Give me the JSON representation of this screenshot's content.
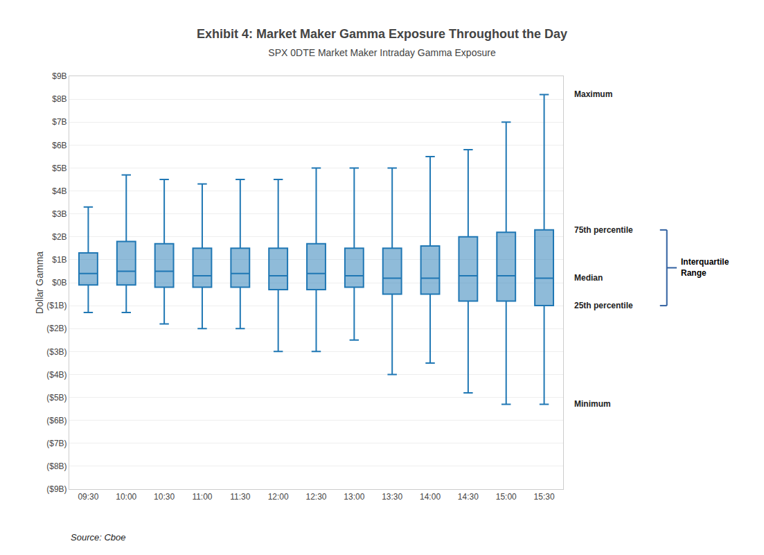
{
  "chart_data": {
    "type": "box",
    "title": "Exhibit 4: Market Maker Gamma Exposure Throughout the Day",
    "subtitle": "SPX 0DTE Market Maker Intraday Gamma Exposure",
    "source": "Source: Cboe",
    "ylabel": "Dollar Gamma",
    "categories": [
      "09:30",
      "10:00",
      "10:30",
      "11:00",
      "11:30",
      "12:00",
      "12:30",
      "13:00",
      "13:30",
      "14:00",
      "14:30",
      "15:00",
      "15:30"
    ],
    "min": [
      -1.3,
      -1.3,
      -1.8,
      -2.0,
      -2.0,
      -3.0,
      -3.0,
      -2.5,
      -4.0,
      -3.5,
      -4.8,
      -5.3,
      -5.3
    ],
    "q1": [
      -0.1,
      -0.1,
      -0.2,
      -0.2,
      -0.2,
      -0.3,
      -0.3,
      -0.2,
      -0.5,
      -0.5,
      -0.8,
      -0.8,
      -1.0
    ],
    "median": [
      0.4,
      0.5,
      0.5,
      0.3,
      0.4,
      0.3,
      0.4,
      0.3,
      0.2,
      0.2,
      0.3,
      0.3,
      0.2
    ],
    "q3": [
      1.3,
      1.8,
      1.7,
      1.5,
      1.5,
      1.5,
      1.7,
      1.5,
      1.5,
      1.6,
      2.0,
      2.2,
      2.3
    ],
    "max": [
      3.3,
      4.7,
      4.5,
      4.3,
      4.5,
      4.5,
      5.0,
      5.0,
      5.0,
      5.5,
      5.8,
      7.0,
      8.2
    ],
    "annotations": {
      "max": "Maximum",
      "q3": "75th percentile",
      "median": "Median",
      "q1": "25th percentile",
      "min": "Minimum",
      "iqr": "Interquartile\nRange"
    },
    "ylim": [
      -9,
      9
    ],
    "yticks": [
      {
        "value": -9,
        "label": "($9B)"
      },
      {
        "value": -8,
        "label": "($8B)"
      },
      {
        "value": -7,
        "label": "($7B)"
      },
      {
        "value": -6,
        "label": "($6B)"
      },
      {
        "value": -5,
        "label": "($5B)"
      },
      {
        "value": -4,
        "label": "($4B)"
      },
      {
        "value": -3,
        "label": "($3B)"
      },
      {
        "value": -2,
        "label": "($2B)"
      },
      {
        "value": -1,
        "label": "($1B)"
      },
      {
        "value": 0,
        "label": "$0B"
      },
      {
        "value": 1,
        "label": "$1B"
      },
      {
        "value": 2,
        "label": "$2B"
      },
      {
        "value": 3,
        "label": "$3B"
      },
      {
        "value": 4,
        "label": "$4B"
      },
      {
        "value": 5,
        "label": "$5B"
      },
      {
        "value": 6,
        "label": "$6B"
      },
      {
        "value": 7,
        "label": "$7B"
      },
      {
        "value": 8,
        "label": "$8B"
      },
      {
        "value": 9,
        "label": "$9B"
      }
    ],
    "grid": true
  }
}
